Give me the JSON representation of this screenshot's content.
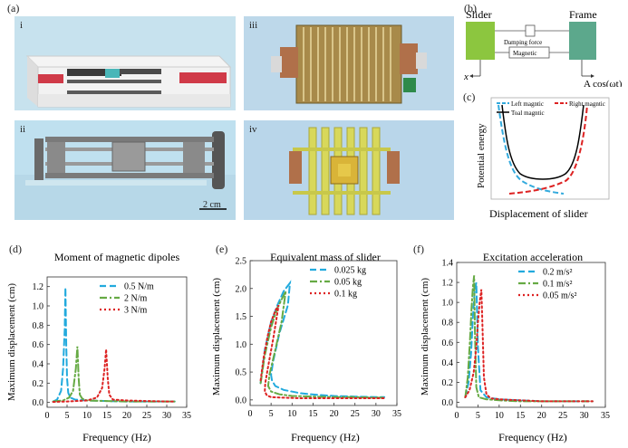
{
  "panel_labels": {
    "a": "(a)",
    "b": "(b)",
    "c": "(c)",
    "d": "(d)",
    "e": "(e)",
    "f": "(f)"
  },
  "photos": {
    "i": {
      "label": "i",
      "bg": "#c7e2ee"
    },
    "ii": {
      "label": "ii",
      "bg": "#bfe0ef",
      "scale_bar": "2 cm"
    },
    "iii": {
      "label": "iii",
      "bg": "#bdd8ea"
    },
    "iv": {
      "label": "iv",
      "bg": "#b9d6ea"
    }
  },
  "schematic_b": {
    "slider_label": "Slider",
    "frame_label": "Frame",
    "damping_label": "Damping force",
    "magnetic_label": "Magnetic",
    "x_label": "x",
    "excitation_label": "A cos(ωt)",
    "slider_color": "#8cc63f",
    "frame_color": "#5ca88c"
  },
  "potential_c": {
    "ylabel": "Potential energy",
    "xlabel": "Displacement of slider",
    "legend": [
      "Left magntic",
      "Right magntic",
      "Toal magntic"
    ],
    "colors": {
      "left": "#33aadd",
      "right": "#dd2222",
      "total": "#000000"
    }
  },
  "chart_data": [
    {
      "panel": "d",
      "type": "line",
      "title": "Moment of magnetic dipoles",
      "xlabel": "Frequency (Hz)",
      "ylabel": "Maximum displacement (cm)",
      "xlim": [
        0,
        35
      ],
      "ylim": [
        -0.05,
        1.3
      ],
      "xticks": [
        0,
        5,
        10,
        15,
        20,
        25,
        30,
        35
      ],
      "yticks": [
        0.0,
        0.2,
        0.4,
        0.6,
        0.8,
        1.0,
        1.2
      ],
      "series": [
        {
          "name": "0.5 N/m",
          "color": "#22aadd",
          "dash": "7,4",
          "x": [
            1.5,
            2.5,
            3.5,
            4.0,
            4.4,
            4.6,
            4.8,
            5.0,
            5.3,
            5.8,
            7,
            10,
            15,
            20,
            25,
            30,
            32
          ],
          "y": [
            0.01,
            0.03,
            0.12,
            0.35,
            0.75,
            1.19,
            0.6,
            0.25,
            0.1,
            0.05,
            0.03,
            0.02,
            0.015,
            0.01,
            0.01,
            0.01,
            0.01
          ]
        },
        {
          "name": "2 N/m",
          "color": "#66aa44",
          "dash": "8,3,2,3",
          "x": [
            1.5,
            4,
            5.5,
            6.5,
            7.2,
            7.6,
            7.9,
            8.2,
            8.8,
            10,
            15,
            20,
            25,
            30,
            32
          ],
          "y": [
            0.01,
            0.02,
            0.05,
            0.12,
            0.35,
            0.58,
            0.25,
            0.08,
            0.04,
            0.02,
            0.015,
            0.01,
            0.01,
            0.01,
            0.01
          ]
        },
        {
          "name": "3 N/m",
          "color": "#dd2222",
          "dash": "2,3",
          "x": [
            1.5,
            5,
            10,
            12.5,
            13.8,
            14.4,
            14.8,
            15.2,
            15.6,
            16.5,
            20,
            25,
            30,
            32
          ],
          "y": [
            0.005,
            0.01,
            0.02,
            0.05,
            0.15,
            0.35,
            0.55,
            0.25,
            0.08,
            0.03,
            0.02,
            0.015,
            0.01,
            0.01
          ]
        }
      ]
    },
    {
      "panel": "e",
      "type": "line",
      "title": "Equivalent mass of slider",
      "xlabel": "Frequency (Hz)",
      "ylabel": "Maximum displacement (cm)",
      "xlim": [
        0,
        35
      ],
      "ylim": [
        -0.1,
        2.5
      ],
      "xticks": [
        0,
        5,
        10,
        15,
        20,
        25,
        30,
        35
      ],
      "yticks": [
        0.0,
        0.5,
        1.0,
        1.5,
        2.0,
        2.5
      ],
      "series": [
        {
          "name": "0.025 kg",
          "color": "#22aadd",
          "dash": "7,4",
          "x": [
            2.5,
            3.5,
            5,
            6.5,
            8,
            9.5,
            9.0,
            7,
            5.5,
            5.0,
            5.2,
            6,
            8,
            12,
            16,
            20,
            25,
            30,
            32
          ],
          "y": [
            0.3,
            0.9,
            1.4,
            1.7,
            1.95,
            2.1,
            1.7,
            1.2,
            0.7,
            0.45,
            0.35,
            0.25,
            0.18,
            0.12,
            0.09,
            0.07,
            0.06,
            0.05,
            0.05
          ]
        },
        {
          "name": "0.05 kg",
          "color": "#66aa44",
          "dash": "8,3,2,3",
          "x": [
            2.5,
            3.5,
            5,
            6.5,
            7.5,
            8.5,
            7.5,
            6,
            4.6,
            4.3,
            5,
            7,
            10,
            15,
            20,
            25,
            30,
            32
          ],
          "y": [
            0.3,
            0.8,
            1.3,
            1.65,
            1.8,
            1.95,
            1.4,
            0.9,
            0.45,
            0.25,
            0.15,
            0.1,
            0.07,
            0.06,
            0.05,
            0.05,
            0.04,
            0.04
          ]
        },
        {
          "name": "0.1 kg",
          "color": "#dd2222",
          "dash": "2,3",
          "x": [
            2.5,
            3.2,
            4.2,
            5,
            6,
            6.8,
            5.5,
            4.3,
            3.6,
            3.5,
            4,
            5,
            8,
            12,
            18,
            25,
            30,
            32
          ],
          "y": [
            0.35,
            0.75,
            1.15,
            1.4,
            1.6,
            1.7,
            1.1,
            0.6,
            0.3,
            0.15,
            0.08,
            0.05,
            0.04,
            0.03,
            0.03,
            0.03,
            0.03,
            0.03
          ]
        }
      ]
    },
    {
      "panel": "f",
      "type": "line",
      "title": "Excitation acceleration",
      "xlabel": "Frequency (Hz)",
      "ylabel": "Maximum displacement (cm)",
      "xlim": [
        0,
        35
      ],
      "ylim": [
        -0.05,
        1.4
      ],
      "xticks": [
        0,
        5,
        10,
        15,
        20,
        25,
        30,
        35
      ],
      "yticks": [
        0.0,
        0.2,
        0.4,
        0.6,
        0.8,
        1.0,
        1.2,
        1.4
      ],
      "series": [
        {
          "name": "0.2 m/s²",
          "color": "#22aadd",
          "dash": "7,4",
          "x": [
            2,
            2.8,
            3.4,
            3.8,
            4.2,
            4.6,
            5.0,
            5.6,
            7,
            10,
            15,
            20,
            25,
            30,
            32
          ],
          "y": [
            0.05,
            0.2,
            0.5,
            0.85,
            1.1,
            1.2,
            0.55,
            0.12,
            0.05,
            0.03,
            0.02,
            0.01,
            0.01,
            0.01,
            0.01
          ]
        },
        {
          "name": "0.1 m/s²",
          "color": "#66aa44",
          "dash": "8,3,2,3",
          "x": [
            2,
            2.6,
            3.1,
            3.5,
            3.8,
            4.1,
            4.3,
            4.6,
            5.2,
            7,
            10,
            15,
            20,
            25,
            30,
            32
          ],
          "y": [
            0.05,
            0.25,
            0.6,
            0.95,
            1.15,
            1.27,
            0.7,
            0.15,
            0.05,
            0.03,
            0.02,
            0.01,
            0.01,
            0.01,
            0.01,
            0.01
          ]
        },
        {
          "name": "0.05 m/s²",
          "color": "#dd2222",
          "dash": "2,3",
          "x": [
            2,
            3,
            4,
            4.6,
            5.0,
            5.4,
            5.8,
            6.1,
            6.4,
            7,
            8,
            10,
            15,
            20,
            25,
            30,
            32
          ],
          "y": [
            0.05,
            0.12,
            0.3,
            0.55,
            0.8,
            1.0,
            1.13,
            0.7,
            0.25,
            0.08,
            0.04,
            0.03,
            0.02,
            0.01,
            0.01,
            0.01,
            0.01
          ]
        }
      ]
    }
  ]
}
